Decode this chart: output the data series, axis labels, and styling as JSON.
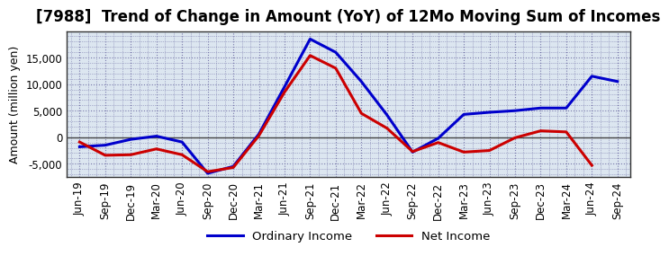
{
  "title": "[7988]  Trend of Change in Amount (YoY) of 12Mo Moving Sum of Incomes",
  "ylabel": "Amount (million yen)",
  "x_labels": [
    "Jun-19",
    "Sep-19",
    "Dec-19",
    "Mar-20",
    "Jun-20",
    "Sep-20",
    "Dec-20",
    "Mar-21",
    "Jun-21",
    "Sep-21",
    "Dec-21",
    "Mar-22",
    "Jun-22",
    "Sep-22",
    "Dec-22",
    "Mar-23",
    "Jun-23",
    "Sep-23",
    "Dec-23",
    "Mar-24",
    "Jun-24",
    "Sep-24"
  ],
  "ordinary_income": [
    -1800,
    -1500,
    -400,
    200,
    -900,
    -6800,
    -5500,
    600,
    9500,
    18500,
    16000,
    10500,
    4200,
    -2800,
    -200,
    4300,
    4700,
    5000,
    5500,
    5500,
    11500,
    10500
  ],
  "net_income": [
    -900,
    -3400,
    -3300,
    -2200,
    -3300,
    -6500,
    -5700,
    300,
    8500,
    15400,
    13000,
    4500,
    1700,
    -2700,
    -1000,
    -2800,
    -2500,
    -100,
    1200,
    1000,
    -5300,
    null
  ],
  "ordinary_color": "#0000cc",
  "net_color": "#cc0000",
  "ylim": [
    -7500,
    20000
  ],
  "yticks": [
    -5000,
    0,
    5000,
    10000,
    15000
  ],
  "plot_bg_color": "#dce6f0",
  "fig_bg_color": "#ffffff",
  "grid_color": "#7777aa",
  "zero_line_color": "#444444",
  "legend_labels": [
    "Ordinary Income",
    "Net Income"
  ],
  "spine_color": "#333333",
  "title_fontsize": 12,
  "ylabel_fontsize": 9,
  "tick_fontsize": 8.5,
  "legend_fontsize": 9.5,
  "line_width": 2.2
}
